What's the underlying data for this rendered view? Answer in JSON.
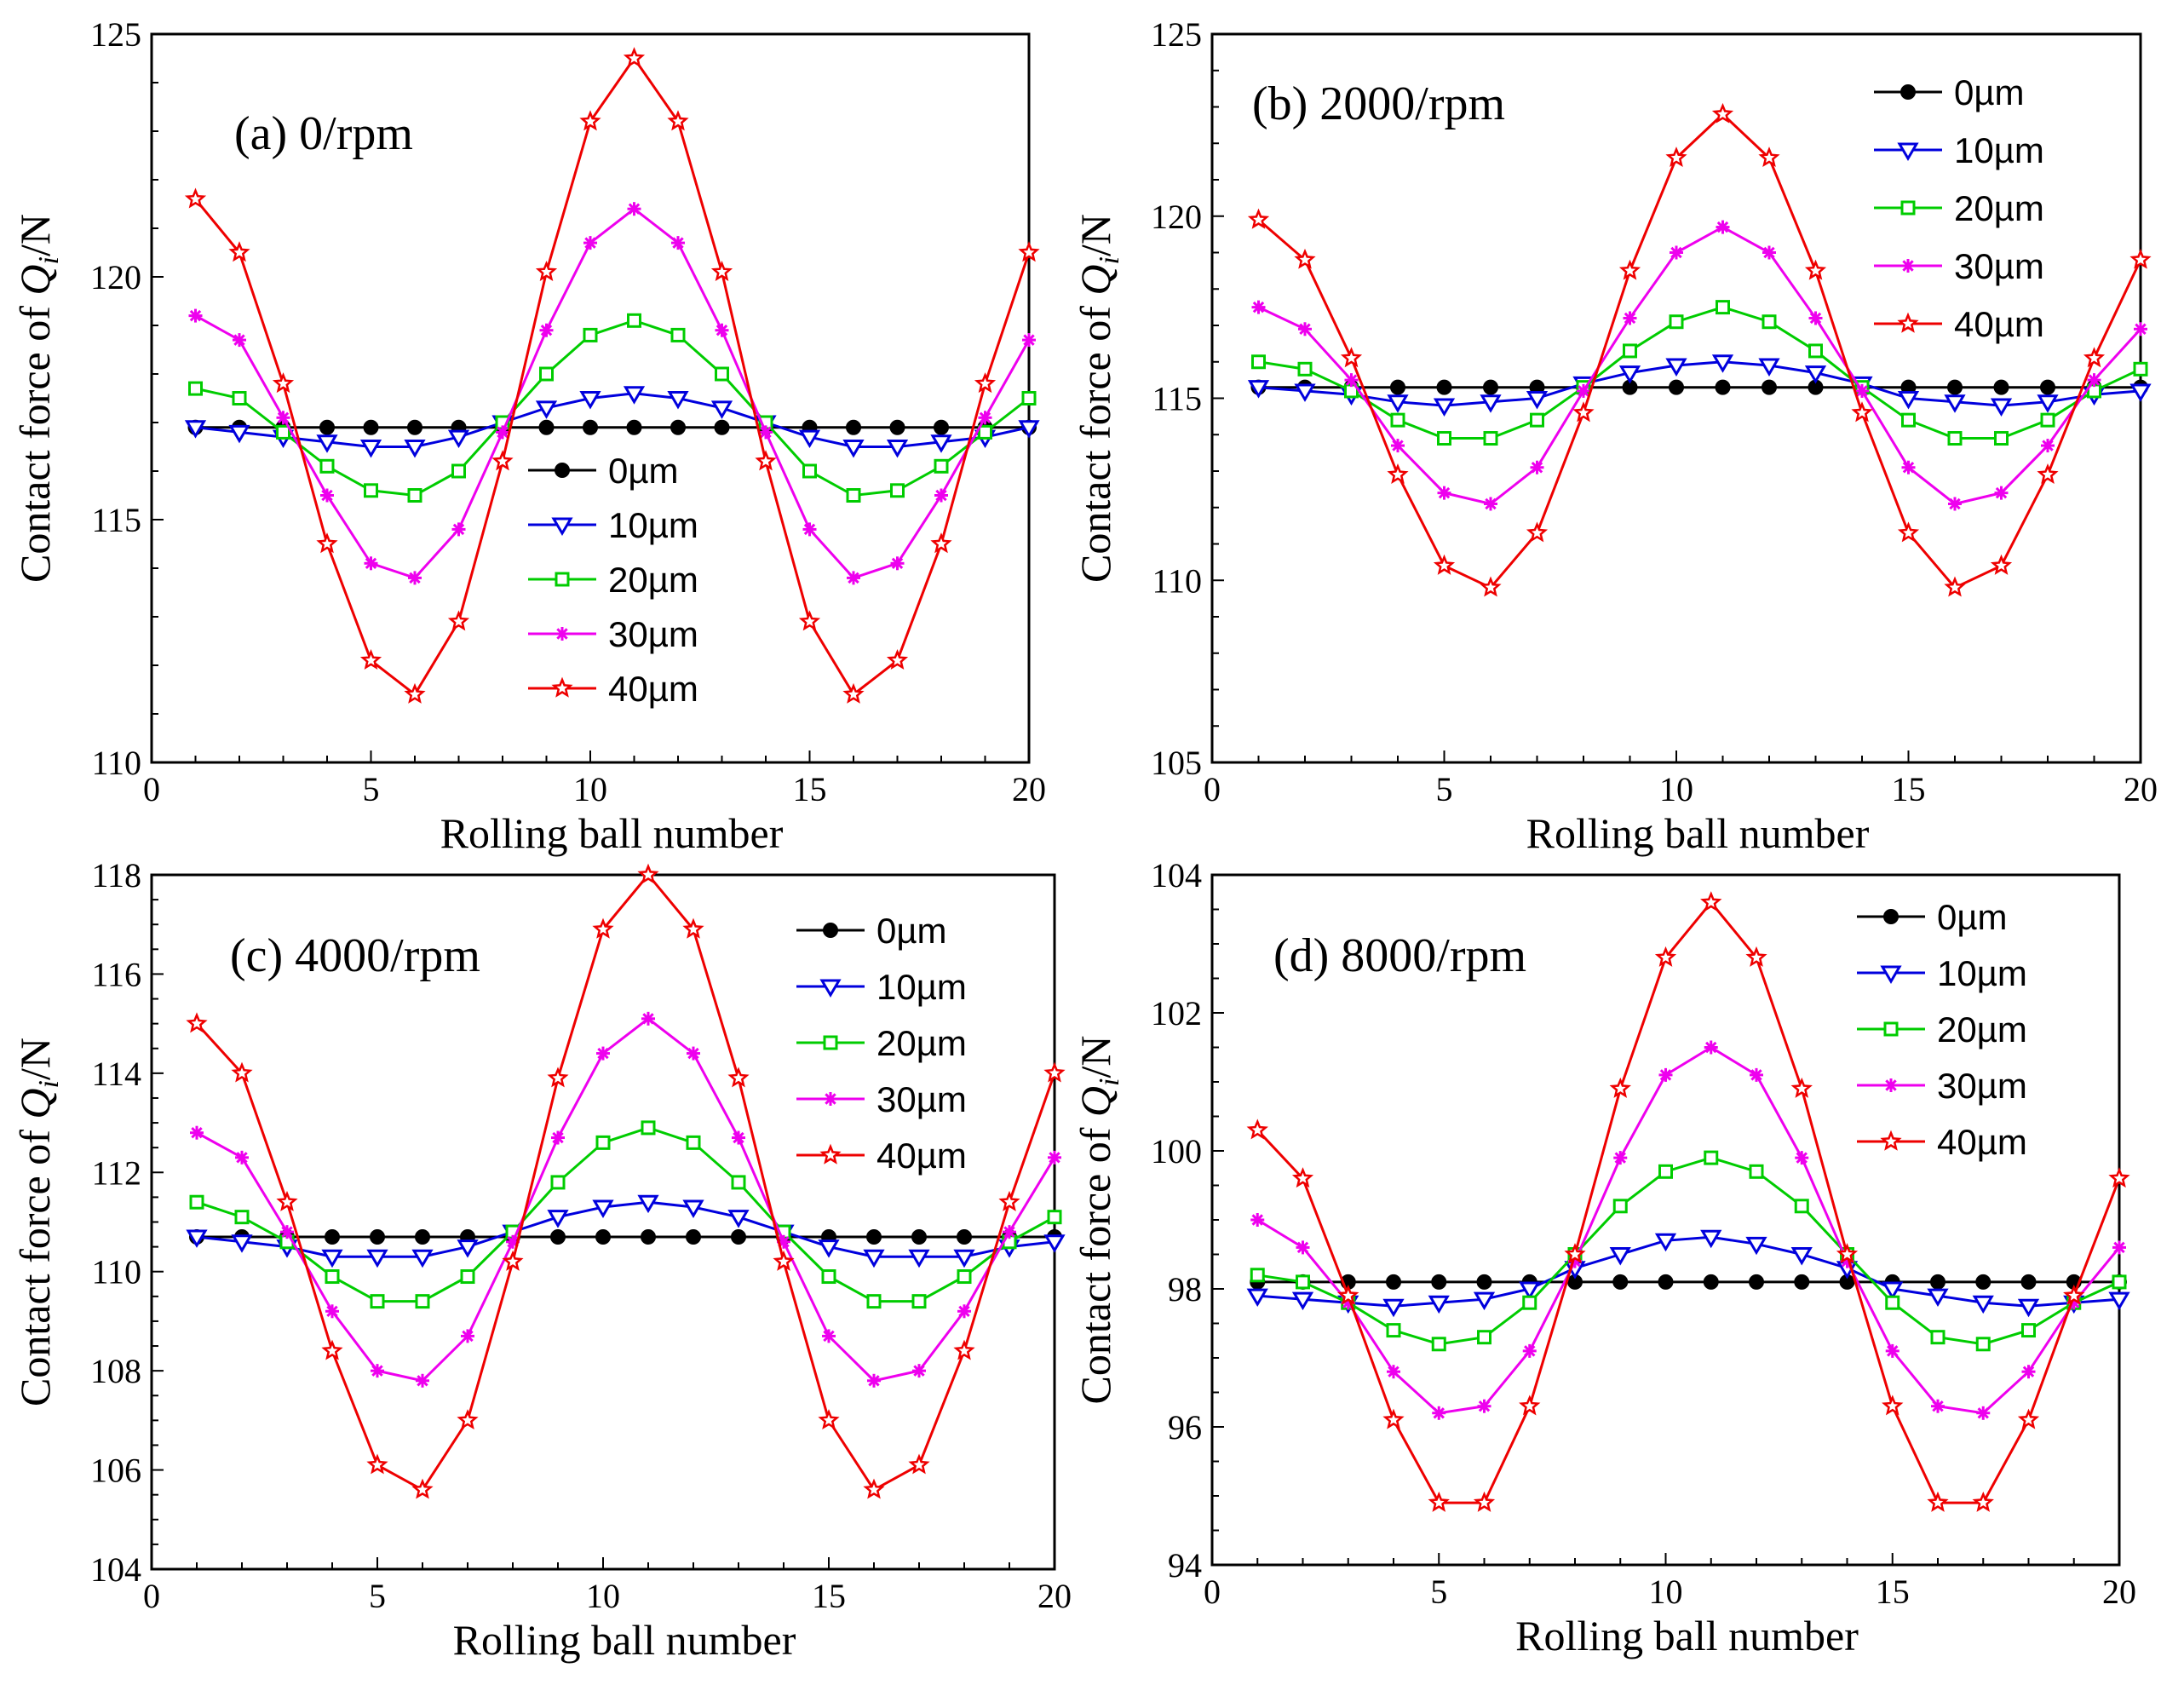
{
  "figure": {
    "ylabel_prefix": "Contact force of ",
    "ylabel_symbol": "Q",
    "ylabel_subscript": "i",
    "ylabel_suffix": "/N"
  },
  "series_colors": {
    "0µm": "#000000",
    "10µm": "#0000dd",
    "20µm": "#00cc00",
    "30µm": "#ee00ee",
    "40µm": "#ee0000"
  },
  "chart_data": [
    {
      "type": "line",
      "title": "(a) 0/rpm",
      "xlabel": "Rolling ball number",
      "ylabel": "Contact force of Qi/N",
      "xlim": [
        0,
        20
      ],
      "ylim": [
        110,
        125
      ],
      "xticks": [
        0,
        5,
        10,
        15,
        20
      ],
      "yticks": [
        110,
        115,
        120,
        125
      ],
      "legend_position": "center-bottom",
      "x": [
        1,
        2,
        3,
        4,
        5,
        6,
        7,
        8,
        9,
        10,
        11,
        12,
        13,
        14,
        15,
        16,
        17,
        18,
        19,
        20
      ],
      "series": [
        {
          "name": "0µm",
          "marker": "circle",
          "values": [
            116.9,
            116.9,
            116.9,
            116.9,
            116.9,
            116.9,
            116.9,
            116.9,
            116.9,
            116.9,
            116.9,
            116.9,
            116.9,
            116.9,
            116.9,
            116.9,
            116.9,
            116.9,
            116.9,
            116.9
          ]
        },
        {
          "name": "10µm",
          "marker": "triangle-down",
          "values": [
            116.9,
            116.8,
            116.7,
            116.6,
            116.5,
            116.5,
            116.7,
            117.0,
            117.3,
            117.5,
            117.6,
            117.5,
            117.3,
            117.0,
            116.7,
            116.5,
            116.5,
            116.6,
            116.7,
            116.9
          ]
        },
        {
          "name": "20µm",
          "marker": "square",
          "values": [
            117.7,
            117.5,
            116.8,
            116.1,
            115.6,
            115.5,
            116.0,
            117.0,
            118.0,
            118.8,
            119.1,
            118.8,
            118.0,
            117.0,
            116.0,
            115.5,
            115.6,
            116.1,
            116.8,
            117.5
          ]
        },
        {
          "name": "30µm",
          "marker": "asterisk",
          "values": [
            119.2,
            118.7,
            117.1,
            115.5,
            114.1,
            113.8,
            114.8,
            116.8,
            118.9,
            120.7,
            121.4,
            120.7,
            118.9,
            116.8,
            114.8,
            113.8,
            114.1,
            115.5,
            117.1,
            118.7
          ]
        },
        {
          "name": "40µm",
          "marker": "star",
          "values": [
            121.6,
            120.5,
            117.8,
            114.5,
            112.1,
            111.4,
            112.9,
            116.2,
            120.1,
            123.2,
            124.5,
            123.2,
            120.1,
            116.2,
            112.9,
            111.4,
            112.1,
            114.5,
            117.8,
            120.5
          ]
        }
      ]
    },
    {
      "type": "line",
      "title": "(b) 2000/rpm",
      "xlabel": "Rolling ball number",
      "ylabel": "Contact force of Qi/N",
      "xlim": [
        0,
        20
      ],
      "ylim": [
        105,
        125
      ],
      "xticks": [
        0,
        5,
        10,
        15,
        20
      ],
      "yticks": [
        105,
        110,
        115,
        120,
        125
      ],
      "legend_position": "top-right",
      "x": [
        1,
        2,
        3,
        4,
        5,
        6,
        7,
        8,
        9,
        10,
        11,
        12,
        13,
        14,
        15,
        16,
        17,
        18,
        19,
        20
      ],
      "series": [
        {
          "name": "0µm",
          "marker": "circle",
          "values": [
            115.3,
            115.3,
            115.3,
            115.3,
            115.3,
            115.3,
            115.3,
            115.3,
            115.3,
            115.3,
            115.3,
            115.3,
            115.3,
            115.3,
            115.3,
            115.3,
            115.3,
            115.3,
            115.3,
            115.3
          ]
        },
        {
          "name": "10µm",
          "marker": "triangle-down",
          "values": [
            115.3,
            115.2,
            115.1,
            114.9,
            114.8,
            114.9,
            115.0,
            115.4,
            115.7,
            115.9,
            116.0,
            115.9,
            115.7,
            115.4,
            115.0,
            114.9,
            114.8,
            114.9,
            115.1,
            115.2
          ]
        },
        {
          "name": "20µm",
          "marker": "square",
          "values": [
            116.0,
            115.8,
            115.2,
            114.4,
            113.9,
            113.9,
            114.4,
            115.3,
            116.3,
            117.1,
            117.5,
            117.1,
            116.3,
            115.3,
            114.4,
            113.9,
            113.9,
            114.4,
            115.2,
            115.8
          ]
        },
        {
          "name": "30µm",
          "marker": "asterisk",
          "values": [
            117.5,
            116.9,
            115.5,
            113.7,
            112.4,
            112.1,
            113.1,
            115.2,
            117.2,
            119.0,
            119.7,
            119.0,
            117.2,
            115.2,
            113.1,
            112.1,
            112.4,
            113.7,
            115.5,
            116.9
          ]
        },
        {
          "name": "40µm",
          "marker": "star",
          "values": [
            119.9,
            118.8,
            116.1,
            112.9,
            110.4,
            109.8,
            111.3,
            114.6,
            118.5,
            121.6,
            122.8,
            121.6,
            118.5,
            114.6,
            111.3,
            109.8,
            110.4,
            112.9,
            116.1,
            118.8
          ]
        }
      ]
    },
    {
      "type": "line",
      "title": "(c) 4000/rpm",
      "xlabel": "Rolling ball number",
      "ylabel": "Contact force of Qi/N",
      "xlim": [
        0,
        20
      ],
      "ylim": [
        104,
        118
      ],
      "xticks": [
        0,
        5,
        10,
        15,
        20
      ],
      "yticks": [
        104,
        106,
        108,
        110,
        112,
        114,
        116,
        118
      ],
      "legend_position": "top-right",
      "x": [
        1,
        2,
        3,
        4,
        5,
        6,
        7,
        8,
        9,
        10,
        11,
        12,
        13,
        14,
        15,
        16,
        17,
        18,
        19,
        20
      ],
      "series": [
        {
          "name": "0µm",
          "marker": "circle",
          "values": [
            110.7,
            110.7,
            110.7,
            110.7,
            110.7,
            110.7,
            110.7,
            110.7,
            110.7,
            110.7,
            110.7,
            110.7,
            110.7,
            110.7,
            110.7,
            110.7,
            110.7,
            110.7,
            110.7,
            110.7
          ]
        },
        {
          "name": "10µm",
          "marker": "triangle-down",
          "values": [
            110.7,
            110.6,
            110.5,
            110.3,
            110.3,
            110.3,
            110.5,
            110.8,
            111.1,
            111.3,
            111.4,
            111.3,
            111.1,
            110.8,
            110.5,
            110.3,
            110.3,
            110.3,
            110.5,
            110.6
          ]
        },
        {
          "name": "20µm",
          "marker": "square",
          "values": [
            111.4,
            111.1,
            110.6,
            109.9,
            109.4,
            109.4,
            109.9,
            110.8,
            111.8,
            112.6,
            112.9,
            112.6,
            111.8,
            110.8,
            109.9,
            109.4,
            109.4,
            109.9,
            110.6,
            111.1
          ]
        },
        {
          "name": "30µm",
          "marker": "asterisk",
          "values": [
            112.8,
            112.3,
            110.8,
            109.2,
            108.0,
            107.8,
            108.7,
            110.6,
            112.7,
            114.4,
            115.1,
            114.4,
            112.7,
            110.6,
            108.7,
            107.8,
            108.0,
            109.2,
            110.8,
            112.3
          ]
        },
        {
          "name": "40µm",
          "marker": "star",
          "values": [
            115.0,
            114.0,
            111.4,
            108.4,
            106.1,
            105.6,
            107.0,
            110.2,
            113.9,
            116.9,
            118.0,
            116.9,
            113.9,
            110.2,
            107.0,
            105.6,
            106.1,
            108.4,
            111.4,
            114.0
          ]
        }
      ]
    },
    {
      "type": "line",
      "title": "(d) 8000/rpm",
      "xlabel": "Rolling ball number",
      "ylabel": "Contact force of Qi/N",
      "xlim": [
        0,
        20
      ],
      "ylim": [
        94,
        104
      ],
      "xticks": [
        0,
        5,
        10,
        15,
        20
      ],
      "yticks": [
        94,
        96,
        98,
        100,
        102,
        104
      ],
      "legend_position": "top-right",
      "x": [
        1,
        2,
        3,
        4,
        5,
        6,
        7,
        8,
        9,
        10,
        11,
        12,
        13,
        14,
        15,
        16,
        17,
        18,
        19,
        20
      ],
      "series": [
        {
          "name": "0µm",
          "marker": "circle",
          "values": [
            98.1,
            98.1,
            98.1,
            98.1,
            98.1,
            98.1,
            98.1,
            98.1,
            98.1,
            98.1,
            98.1,
            98.1,
            98.1,
            98.1,
            98.1,
            98.1,
            98.1,
            98.1,
            98.1,
            98.1
          ]
        },
        {
          "name": "10µm",
          "marker": "triangle-down",
          "values": [
            97.9,
            97.85,
            97.8,
            97.75,
            97.8,
            97.85,
            98.0,
            98.3,
            98.5,
            98.7,
            98.75,
            98.65,
            98.5,
            98.3,
            98.0,
            97.9,
            97.8,
            97.75,
            97.8,
            97.85
          ]
        },
        {
          "name": "20µm",
          "marker": "square",
          "values": [
            98.2,
            98.1,
            97.8,
            97.4,
            97.2,
            97.3,
            97.8,
            98.5,
            99.2,
            99.7,
            99.9,
            99.7,
            99.2,
            98.5,
            97.8,
            97.3,
            97.2,
            97.4,
            97.8,
            98.1
          ]
        },
        {
          "name": "30µm",
          "marker": "asterisk",
          "values": [
            99.0,
            98.6,
            97.8,
            96.8,
            96.2,
            96.3,
            97.1,
            98.4,
            99.9,
            101.1,
            101.5,
            101.1,
            99.9,
            98.4,
            97.1,
            96.3,
            96.2,
            96.8,
            97.8,
            98.6
          ]
        },
        {
          "name": "40µm",
          "marker": "star",
          "values": [
            100.3,
            99.6,
            97.9,
            96.1,
            94.9,
            94.9,
            96.3,
            98.5,
            100.9,
            102.8,
            103.6,
            102.8,
            100.9,
            98.5,
            96.3,
            94.9,
            94.9,
            96.1,
            97.9,
            99.6
          ]
        }
      ]
    }
  ]
}
